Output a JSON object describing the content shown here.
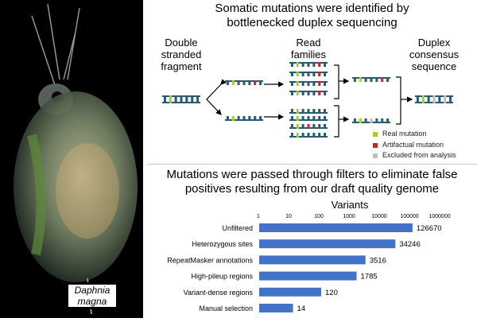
{
  "photo": {
    "caption_line1": "Daphnia",
    "caption_line2": "magna"
  },
  "top_panel": {
    "title_line1": "Somatic mutations were identified by",
    "title_line2": "bottlenecked duplex sequencing",
    "labels": {
      "fragment": [
        "Double",
        "stranded",
        "fragment"
      ],
      "families": [
        "Read",
        "families"
      ],
      "consensus": [
        "Duplex",
        "consensus",
        "sequence"
      ]
    },
    "legend": [
      {
        "label": "Real mutation",
        "color": "#a8cc2c"
      },
      {
        "label": "Artifactual mutation",
        "color": "#d0202a"
      },
      {
        "label": "Excluded from analysis",
        "color": "#bdbdbd"
      }
    ],
    "strand_color": "#2a5a6e"
  },
  "bottom_panel": {
    "title_line1": "Mutations were passed through filters to eliminate false",
    "title_line2": "positives resulting from our draft quality genome"
  },
  "chart_data": {
    "type": "bar",
    "orientation": "horizontal",
    "title": "Variants",
    "xscale": "log",
    "xlim": [
      1,
      1000000
    ],
    "xticks": [
      "1",
      "10",
      "100",
      "1000",
      "10000",
      "100000",
      "1000000"
    ],
    "categories": [
      "Unfiltered",
      "Heterozygous sites",
      "RepeatMasker annotations",
      "High-pileup regions",
      "Variant-dense regions",
      "Manual selection"
    ],
    "values": [
      126670,
      34246,
      3516,
      1785,
      120,
      14
    ],
    "value_labels": [
      "126670",
      "34246",
      "3516",
      "1785",
      "120",
      "14"
    ],
    "bar_color": "#4472c4"
  }
}
